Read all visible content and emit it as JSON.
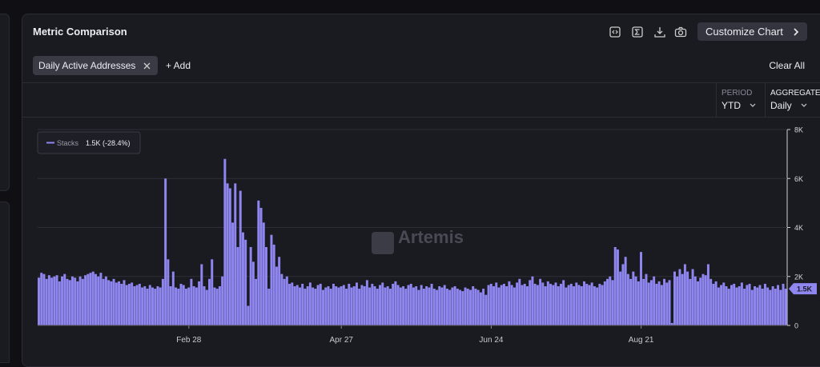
{
  "header": {
    "title": "Metric Comparison",
    "customize_button": "Customize Chart"
  },
  "metrics_bar": {
    "chips": [
      "Daily Active Addresses"
    ],
    "add_button": "+ Add",
    "clear_button": "Clear All"
  },
  "controls": {
    "period_label": "PERIOD",
    "period_value": "YTD",
    "aggregate_label": "AGGREGATE",
    "aggregate_value": "Daily"
  },
  "chart_data": {
    "type": "bar",
    "watermark": "Artemis",
    "legend_value": "1.5K (-28.4%)",
    "current_label": "1.5K",
    "ylim": [
      0,
      8000
    ],
    "yticks": [
      0,
      {
        "value": 2000,
        "label": "2K"
      },
      {
        "value": 4000,
        "label": "4K"
      },
      {
        "value": 6000,
        "label": "6K"
      },
      {
        "value": 8000,
        "label": "8K"
      }
    ],
    "grid": true,
    "y_axis_side": "right",
    "categories": [
      null,
      null,
      null,
      null,
      null,
      null,
      null,
      null,
      null,
      null,
      null,
      null,
      null,
      null,
      null,
      null,
      null,
      null,
      null,
      null,
      null,
      null,
      null,
      null,
      null,
      null,
      null,
      null,
      null,
      null,
      null,
      null,
      null,
      null,
      null,
      null,
      null,
      null,
      null,
      null,
      null,
      null,
      null,
      null,
      null,
      null,
      null,
      null,
      null,
      null,
      null,
      null,
      null,
      null,
      null,
      null,
      null,
      null,
      "Feb 28",
      null,
      null,
      null,
      null,
      null,
      null,
      null,
      null,
      null,
      null,
      null,
      null,
      null,
      null,
      null,
      null,
      null,
      null,
      null,
      null,
      null,
      null,
      null,
      null,
      null,
      null,
      null,
      null,
      null,
      null,
      null,
      null,
      null,
      null,
      null,
      null,
      null,
      null,
      null,
      null,
      null,
      null,
      null,
      null,
      null,
      null,
      null,
      null,
      null,
      null,
      null,
      null,
      null,
      null,
      null,
      null,
      null,
      null,
      "Apr 27",
      null,
      null,
      null,
      null,
      null,
      null,
      null,
      null,
      null,
      null,
      null,
      null,
      null,
      null,
      null,
      null,
      null,
      null,
      null,
      null,
      null,
      null,
      null,
      null,
      null,
      null,
      null,
      null,
      null,
      null,
      null,
      null,
      null,
      null,
      null,
      null,
      null,
      null,
      null,
      null,
      null,
      null,
      null,
      null,
      null,
      null,
      null,
      null,
      null,
      null,
      null,
      null,
      null,
      null,
      null,
      null,
      null,
      "Jun 24",
      null,
      null,
      null,
      null,
      null,
      null,
      null,
      null,
      null,
      null,
      null,
      null,
      null,
      null,
      null,
      null,
      null,
      null,
      null,
      null,
      null,
      null,
      null,
      null,
      null,
      null,
      null,
      null,
      null,
      null,
      null,
      null,
      null,
      null,
      null,
      null,
      null,
      null,
      null,
      null,
      null,
      null,
      null,
      null,
      null,
      null,
      null,
      null,
      null,
      null,
      null,
      null,
      null,
      null,
      null,
      null,
      null,
      "Aug 21",
      null,
      null,
      null,
      null,
      null,
      null,
      null,
      null,
      null,
      null,
      null,
      null,
      null,
      null,
      null,
      null,
      null,
      null,
      null,
      null,
      null,
      null,
      null,
      null,
      null,
      null,
      null,
      null,
      null,
      null,
      null,
      null,
      null,
      null,
      null,
      null,
      null,
      null,
      null,
      null,
      null,
      null,
      null,
      null,
      null,
      null,
      null,
      null,
      null,
      null,
      null,
      null,
      null,
      null,
      null,
      null
    ],
    "series": [
      {
        "name": "Stacks",
        "color": "#8f86f0",
        "values": [
          1950,
          2150,
          2100,
          1900,
          2050,
          1950,
          2000,
          2050,
          1800,
          2000,
          2100,
          1900,
          1850,
          2000,
          1950,
          1800,
          2000,
          1900,
          2050,
          2100,
          2150,
          2200,
          2100,
          2000,
          2150,
          1900,
          2000,
          1850,
          1800,
          1900,
          1750,
          1800,
          1700,
          1850,
          1650,
          1700,
          1750,
          1600,
          1650,
          1700,
          1550,
          1600,
          1500,
          1650,
          1550,
          1500,
          1600,
          1550,
          1900,
          6000,
          2700,
          1600,
          2200,
          1550,
          1500,
          1700,
          1650,
          1500,
          1550,
          1900,
          1600,
          1550,
          1800,
          2500,
          1600,
          1450,
          1900,
          2700,
          1550,
          1500,
          1600,
          2000,
          6800,
          5800,
          5600,
          4200,
          5800,
          3200,
          5500,
          3800,
          3500,
          800,
          3200,
          2600,
          1900,
          5100,
          4800,
          4200,
          3200,
          1500,
          3700,
          3300,
          2400,
          2800,
          2100,
          1900,
          2000,
          1700,
          1750,
          1600,
          1650,
          1550,
          1700,
          1500,
          1600,
          1750,
          1550,
          1500,
          1650,
          1700,
          1450,
          1550,
          1600,
          1500,
          1700,
          1600,
          1550,
          1600,
          1650,
          1500,
          1700,
          1550,
          1600,
          1750,
          1500,
          1650,
          1600,
          1850,
          1550,
          1700,
          1600,
          1500,
          1650,
          1750,
          1550,
          1600,
          1500,
          1700,
          1800,
          1650,
          1550,
          1600,
          1500,
          1650,
          1700,
          1550,
          1600,
          1450,
          1650,
          1500,
          1600,
          1550,
          1700,
          1500,
          1450,
          1600,
          1550,
          1650,
          1500,
          1450,
          1550,
          1600,
          1500,
          1450,
          1400,
          1550,
          1500,
          1450,
          1600,
          1500,
          1450,
          1350,
          1500,
          1250,
          1650,
          1700,
          1600,
          1750,
          1550,
          1650,
          1700,
          1600,
          1800,
          1650,
          1550,
          1750,
          1900,
          1650,
          1700,
          1600,
          1850,
          2000,
          1700,
          1650,
          1900,
          1750,
          1600,
          1800,
          1700,
          1650,
          1750,
          1600,
          1700,
          1850,
          1550,
          1650,
          1700,
          1600,
          1750,
          1650,
          1600,
          1800,
          1700,
          1650,
          1750,
          1600,
          1550,
          1700,
          1650,
          1800,
          1900,
          2000,
          1850,
          3200,
          3100,
          2200,
          2500,
          2800,
          2100,
          1900,
          2200,
          2000,
          1800,
          3000,
          1900,
          2100,
          1750,
          1850,
          2000,
          1700,
          1800,
          1650,
          1900,
          1750,
          1850,
          100,
          2200,
          2000,
          2300,
          2100,
          2500,
          2200,
          1900,
          2300,
          2000,
          1800,
          1950,
          2100,
          2050,
          2500,
          1900,
          1700,
          1800,
          1550,
          1650,
          1750,
          1600,
          1500,
          1650,
          1700,
          1550,
          1600,
          1750,
          1500,
          1650,
          1700,
          1450,
          1600,
          1550,
          1650,
          1500,
          1700,
          1550,
          1450,
          1600,
          1500,
          1650,
          1450,
          1700,
          1500
        ]
      }
    ]
  }
}
